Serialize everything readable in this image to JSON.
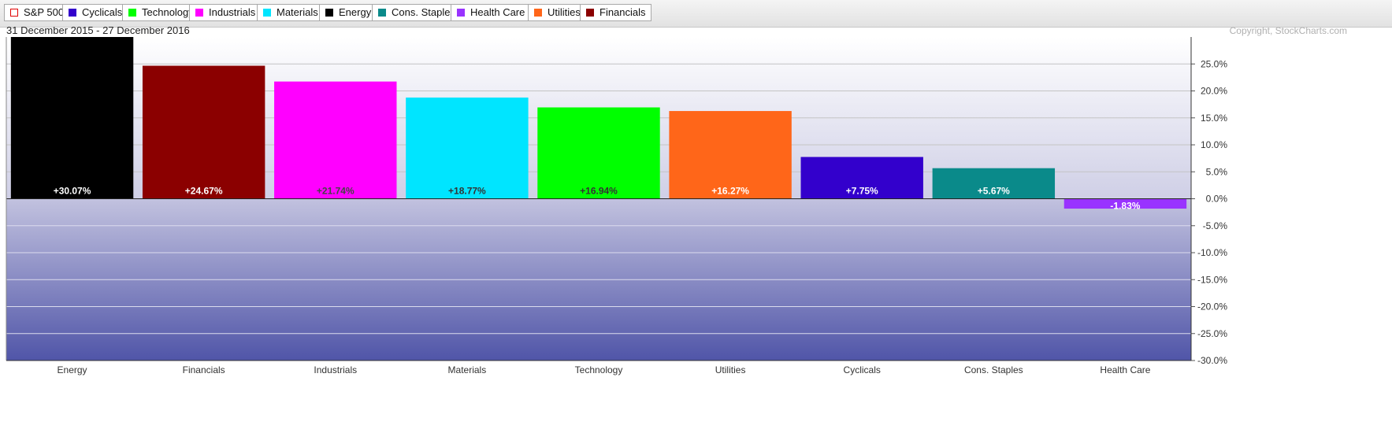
{
  "legend": [
    {
      "label": "S&P 500",
      "color": "#e00000",
      "outline": true
    },
    {
      "label": "Cyclicals",
      "color": "#3300cc"
    },
    {
      "label": "Technology",
      "color": "#00ff00"
    },
    {
      "label": "Industrials",
      "color": "#ff00ff"
    },
    {
      "label": "Materials",
      "color": "#00e5ff"
    },
    {
      "label": "Energy",
      "color": "#000000"
    },
    {
      "label": "Cons. Staples",
      "color": "#0a8a8a"
    },
    {
      "label": "Health Care",
      "color": "#9933ff"
    },
    {
      "label": "Utilities",
      "color": "#ff6619"
    },
    {
      "label": "Financials",
      "color": "#8b0000"
    }
  ],
  "chart": {
    "date_range": "31 December 2015 - 27 December 2016",
    "copyright": "Copyright, StockCharts.com"
  },
  "chart_data": {
    "type": "bar",
    "categories": [
      "Energy",
      "Financials",
      "Industrials",
      "Materials",
      "Technology",
      "Utilities",
      "Cyclicals",
      "Cons. Staples",
      "Health Care"
    ],
    "values": [
      30.07,
      24.67,
      21.74,
      18.77,
      16.94,
      16.27,
      7.75,
      5.67,
      -1.83
    ],
    "labels": [
      "+30.07%",
      "+24.67%",
      "+21.74%",
      "+18.77%",
      "+16.94%",
      "+16.27%",
      "+7.75%",
      "+5.67%",
      "-1.83%"
    ],
    "colors": [
      "#000000",
      "#8b0000",
      "#ff00ff",
      "#00e5ff",
      "#00ff00",
      "#ff6619",
      "#3300cc",
      "#0a8a8a",
      "#9933ff"
    ],
    "label_colors": [
      "#ffffff",
      "#ffffff",
      "#444444",
      "#333333",
      "#333333",
      "#ffffff",
      "#ffffff",
      "#ffffff",
      "#ffffff"
    ],
    "ylim": [
      -30,
      30
    ],
    "yticks": [
      25,
      20,
      15,
      10,
      5,
      0,
      -5,
      -10,
      -15,
      -20,
      -25,
      -30
    ],
    "ytick_labels": [
      "25.0%",
      "20.0%",
      "15.0%",
      "10.0%",
      "5.0%",
      "0.0%",
      "-5.0%",
      "-10.0%",
      "-15.0%",
      "-20.0%",
      "-25.0%",
      "-30.0%"
    ],
    "grid": true,
    "legend_position": "top"
  }
}
